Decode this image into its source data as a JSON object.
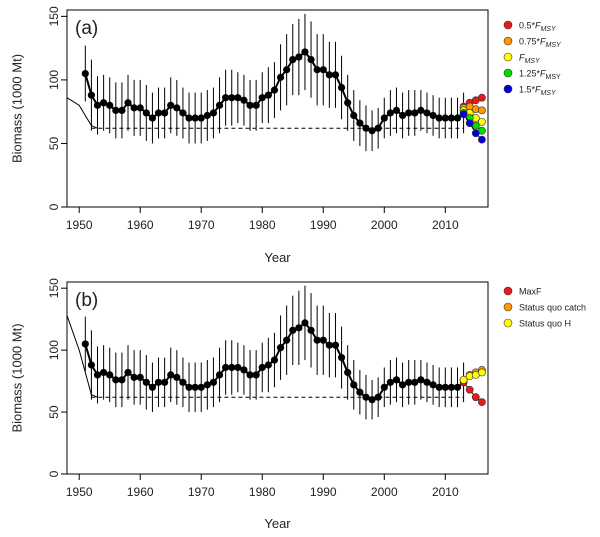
{
  "chart_data": [
    {
      "type": "line",
      "panel_label": "(a)",
      "xlabel": "Year",
      "ylabel": "Biomass (1000 Mt)",
      "xlim": [
        1948,
        2017
      ],
      "ylim": [
        0,
        155
      ],
      "xticks": [
        "1950",
        "1960",
        "1970",
        "1980",
        "1990",
        "2000",
        "2010"
      ],
      "yticks": [
        "0",
        "50",
        "100",
        "150"
      ],
      "grid": false,
      "legend_placement": "outside-right",
      "x": [
        1951,
        1952,
        1953,
        1954,
        1955,
        1956,
        1957,
        1958,
        1959,
        1960,
        1961,
        1962,
        1963,
        1964,
        1965,
        1966,
        1967,
        1968,
        1969,
        1970,
        1971,
        1972,
        1973,
        1974,
        1975,
        1976,
        1977,
        1978,
        1979,
        1980,
        1981,
        1982,
        1983,
        1984,
        1985,
        1986,
        1987,
        1988,
        1989,
        1990,
        1991,
        1992,
        1993,
        1994,
        1995,
        1996,
        1997,
        1998,
        1999,
        2000,
        2001,
        2002,
        2003,
        2004,
        2005,
        2006,
        2007,
        2008,
        2009,
        2010,
        2011,
        2012,
        2013
      ],
      "biomass": [
        105,
        88,
        80,
        82,
        80,
        76,
        76,
        82,
        78,
        78,
        74,
        70,
        74,
        74,
        80,
        78,
        74,
        70,
        70,
        70,
        72,
        74,
        80,
        86,
        86,
        86,
        84,
        80,
        80,
        86,
        88,
        92,
        102,
        108,
        116,
        118,
        122,
        116,
        108,
        108,
        104,
        104,
        94,
        82,
        72,
        66,
        62,
        60,
        62,
        70,
        74,
        76,
        72,
        74,
        74,
        76,
        74,
        72,
        70,
        70,
        70,
        70,
        74
      ],
      "err": [
        22,
        28,
        23,
        22,
        22,
        22,
        22,
        22,
        22,
        22,
        22,
        20,
        20,
        20,
        22,
        22,
        20,
        20,
        20,
        20,
        20,
        20,
        22,
        22,
        22,
        20,
        20,
        20,
        20,
        20,
        22,
        22,
        26,
        28,
        28,
        30,
        30,
        30,
        28,
        28,
        26,
        26,
        25,
        22,
        20,
        18,
        18,
        16,
        16,
        16,
        18,
        18,
        18,
        18,
        18,
        16,
        16,
        16,
        16,
        16,
        16,
        16,
        16
      ],
      "series_line": {
        "x": [
          1948,
          1950,
          1952,
          1953
        ],
        "y": [
          86,
          80,
          64,
          62
        ]
      },
      "reference_line": {
        "y": 62,
        "x": [
          1952,
          2013
        ]
      },
      "projection_x": [
        2013,
        2014,
        2015,
        2016
      ],
      "projections": [
        {
          "name": "0.5*F",
          "sub": "MSY",
          "sub_italic": true,
          "color": "#e41a1c",
          "values": [
            79,
            82,
            84,
            86
          ]
        },
        {
          "name": "0.75*F",
          "sub": "MSY",
          "sub_italic": true,
          "color": "#ff9900",
          "values": [
            78,
            79,
            77,
            76
          ]
        },
        {
          "name": "F",
          "sub": "MSY",
          "sub_italic": true,
          "color": "#ffff00",
          "values": [
            76,
            74,
            70,
            67
          ]
        },
        {
          "name": "1.25*F",
          "sub": "MSY",
          "sub_italic": false,
          "color": "#00dd00",
          "values": [
            74,
            70,
            64,
            60
          ]
        },
        {
          "name": "1.5*F",
          "sub": "MSY",
          "sub_italic": true,
          "color": "#0000dd",
          "values": [
            73,
            66,
            58,
            53
          ]
        }
      ]
    },
    {
      "type": "line",
      "panel_label": "(b)",
      "xlabel": "Year",
      "ylabel": "Biomass (1000 Mt)",
      "xlim": [
        1948,
        2017
      ],
      "ylim": [
        0,
        155
      ],
      "xticks": [
        "1950",
        "1960",
        "1970",
        "1980",
        "1990",
        "2000",
        "2010"
      ],
      "yticks": [
        "0",
        "50",
        "100",
        "150"
      ],
      "grid": false,
      "legend_placement": "outside-right",
      "x": [
        1951,
        1952,
        1953,
        1954,
        1955,
        1956,
        1957,
        1958,
        1959,
        1960,
        1961,
        1962,
        1963,
        1964,
        1965,
        1966,
        1967,
        1968,
        1969,
        1970,
        1971,
        1972,
        1973,
        1974,
        1975,
        1976,
        1977,
        1978,
        1979,
        1980,
        1981,
        1982,
        1983,
        1984,
        1985,
        1986,
        1987,
        1988,
        1989,
        1990,
        1991,
        1992,
        1993,
        1994,
        1995,
        1996,
        1997,
        1998,
        1999,
        2000,
        2001,
        2002,
        2003,
        2004,
        2005,
        2006,
        2007,
        2008,
        2009,
        2010,
        2011,
        2012,
        2013
      ],
      "biomass": [
        105,
        88,
        80,
        82,
        80,
        76,
        76,
        82,
        78,
        78,
        74,
        70,
        74,
        74,
        80,
        78,
        74,
        70,
        70,
        70,
        72,
        74,
        80,
        86,
        86,
        86,
        84,
        80,
        80,
        86,
        88,
        92,
        102,
        108,
        116,
        118,
        122,
        116,
        108,
        108,
        104,
        104,
        94,
        82,
        72,
        66,
        62,
        60,
        62,
        70,
        74,
        76,
        72,
        74,
        74,
        76,
        74,
        72,
        70,
        70,
        70,
        70,
        74
      ],
      "err": [
        22,
        28,
        23,
        22,
        22,
        22,
        22,
        22,
        22,
        22,
        22,
        20,
        20,
        20,
        22,
        22,
        20,
        20,
        20,
        20,
        20,
        20,
        22,
        22,
        22,
        20,
        20,
        20,
        20,
        20,
        22,
        22,
        26,
        28,
        28,
        30,
        30,
        30,
        28,
        28,
        26,
        26,
        25,
        22,
        20,
        18,
        18,
        16,
        16,
        16,
        18,
        18,
        18,
        18,
        18,
        16,
        16,
        16,
        16,
        16,
        16,
        16,
        16
      ],
      "series_line": {
        "x": [
          1948,
          1950,
          1952,
          1953
        ],
        "y": [
          128,
          100,
          64,
          62
        ]
      },
      "reference_line": {
        "y": 62,
        "x": [
          1952,
          2013
        ]
      },
      "projection_x": [
        2013,
        2014,
        2015,
        2016
      ],
      "projections": [
        {
          "name": "MaxF",
          "color": "#e41a1c",
          "values": [
            74,
            68,
            62,
            58
          ]
        },
        {
          "name": "Status quo catch",
          "color": "#ff9900",
          "values": [
            76,
            80,
            82,
            84
          ]
        },
        {
          "name": "Status quo H",
          "color": "#ffff00",
          "values": [
            76,
            79,
            80,
            82
          ]
        }
      ]
    }
  ]
}
